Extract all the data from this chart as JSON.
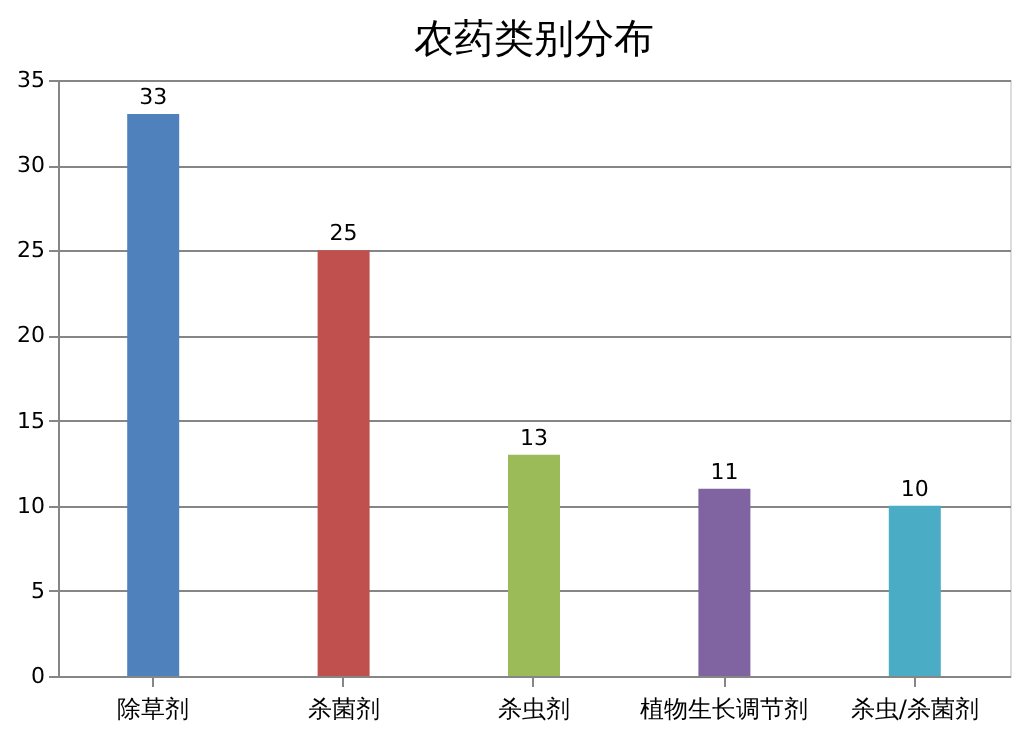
{
  "chart_data": {
    "type": "bar",
    "title": "农药类别分布",
    "categories": [
      "除草剂",
      "杀菌剂",
      "杀虫剂",
      "植物生长调节剂",
      "杀虫/杀菌剂"
    ],
    "values": [
      33,
      25,
      13,
      11,
      10
    ],
    "colors": [
      "#4f81bd",
      "#c0504d",
      "#9bbb59",
      "#8064a2",
      "#4bacc6"
    ],
    "ylim": [
      0,
      35
    ],
    "yticks": [
      0,
      5,
      10,
      15,
      20,
      25,
      30,
      35
    ],
    "grid": "y",
    "data_labels": true
  }
}
